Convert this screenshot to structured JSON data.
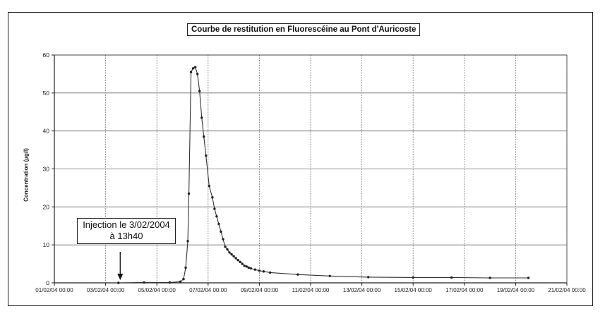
{
  "chart_data": {
    "type": "line",
    "title": "Courbe de restitution en Fluorescéine au Pont d'Auricoste",
    "xlabel": "",
    "ylabel": "Concentration (µg/l)",
    "ylim": [
      0,
      60
    ],
    "yticks": [
      "0",
      "10",
      "20",
      "30",
      "40",
      "50",
      "60"
    ],
    "xticks": [
      "01/02/04 00:00",
      "03/02/04 00:00",
      "05/02/04 00:00",
      "07/02/04 00:00",
      "09/02/04 00:00",
      "11/02/04 00:00",
      "13/02/04 00:00",
      "15/02/04 00:00",
      "17/02/04 00:00",
      "19/02/04 00:00",
      "21/02/04 00:00"
    ],
    "grid": true,
    "legend": "none",
    "line_color": "#333333",
    "annotation": {
      "lines": [
        "Injection le 3/02/2004",
        "à 13h40"
      ],
      "x": "03/02/04 13:40"
    },
    "series": [
      {
        "x": [
          "03/02/04 12:00",
          "04/02/04 12:00",
          "05/02/04 12:00",
          "05/02/04 22:00",
          "06/02/04 01:00",
          "06/02/04 03:00",
          "06/02/04 05:00",
          "06/02/04 06:00",
          "06/02/04 08:00",
          "06/02/04 10:00",
          "06/02/04 12:00",
          "06/02/04 14:00",
          "06/02/04 16:00",
          "06/02/04 18:00",
          "06/02/04 20:00",
          "06/02/04 22:00",
          "07/02/04 01:00",
          "07/02/04 04:00",
          "07/02/04 06:00",
          "07/02/04 08:00",
          "07/02/04 10:00",
          "07/02/04 12:00",
          "07/02/04 14:00",
          "07/02/04 16:00",
          "07/02/04 18:00",
          "07/02/04 20:00",
          "07/02/04 22:00",
          "08/02/04 00:00",
          "08/02/04 02:00",
          "08/02/04 04:00",
          "08/02/04 06:00",
          "08/02/04 08:00",
          "08/02/04 10:00",
          "08/02/04 12:00",
          "08/02/04 14:00",
          "08/02/04 16:00",
          "08/02/04 20:00",
          "09/02/04 00:00",
          "09/02/04 04:00",
          "09/02/04 10:00",
          "10/02/04 12:00",
          "11/02/04 18:00",
          "13/02/04 06:00",
          "15/02/04 00:00",
          "16/02/04 12:00",
          "18/02/04 00:00",
          "19/02/04 12:00"
        ],
        "values": [
          0.0,
          0.1,
          0.1,
          0.3,
          1.0,
          4.0,
          11.0,
          23.5,
          55.5,
          56.5,
          56.8,
          55.0,
          50.5,
          43.5,
          38.5,
          33.5,
          25.5,
          22.5,
          19.5,
          17.5,
          15.5,
          13.5,
          11.5,
          9.5,
          8.8,
          8.0,
          7.5,
          7.0,
          6.5,
          6.0,
          5.5,
          5.0,
          4.5,
          4.3,
          4.0,
          3.8,
          3.5,
          3.2,
          3.0,
          2.7,
          2.2,
          1.8,
          1.5,
          1.4,
          1.4,
          1.3,
          1.3
        ]
      }
    ]
  }
}
